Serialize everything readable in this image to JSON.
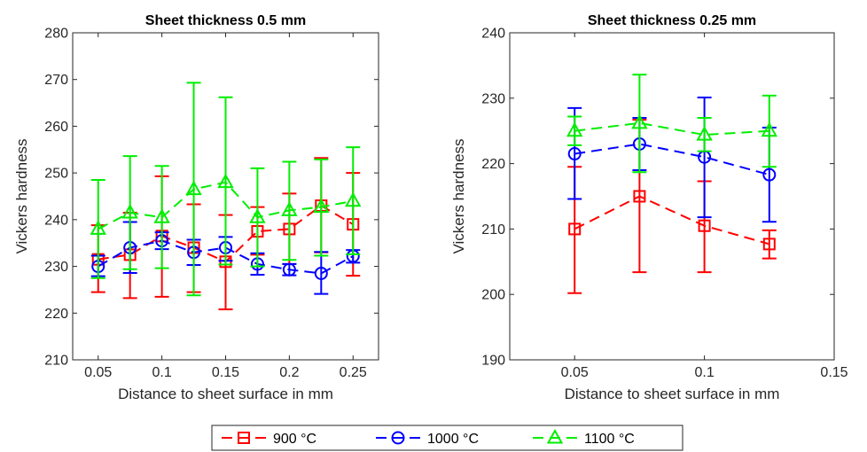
{
  "chart_data": [
    {
      "type": "line",
      "title": "Sheet thickness 0.5 mm",
      "xlabel": "Distance to sheet surface in mm",
      "ylabel": "Vickers hardness",
      "xlim": [
        0.03,
        0.27
      ],
      "ylim": [
        210,
        280
      ],
      "xticks": [
        "0.05",
        "0.1",
        "0.15",
        "0.2",
        "0.25"
      ],
      "xtick_values": [
        0.05,
        0.1,
        0.15,
        0.2,
        0.25
      ],
      "yticks": [
        "210",
        "220",
        "230",
        "240",
        "250",
        "260",
        "270",
        "280"
      ],
      "ytick_values": [
        210,
        220,
        230,
        240,
        250,
        260,
        270,
        280
      ],
      "grid": false,
      "x": [
        0.05,
        0.075,
        0.1,
        0.125,
        0.15,
        0.175,
        0.2,
        0.225,
        0.25
      ],
      "series": [
        {
          "name": "900 °C",
          "color": "#ff0000",
          "marker": "square",
          "values": [
            231.5,
            232.5,
            236.5,
            234.0,
            231.0,
            237.5,
            238.0,
            243.0,
            239.0
          ],
          "err_low": [
            224.5,
            223.2,
            223.5,
            224.5,
            220.8,
            232.5,
            230.5,
            233.0,
            228.0
          ],
          "err_high": [
            238.8,
            241.5,
            249.3,
            243.3,
            241.0,
            242.7,
            245.6,
            253.2,
            250.0
          ]
        },
        {
          "name": "1000 °C",
          "color": "#0000ff",
          "marker": "circle",
          "values": [
            230.0,
            234.0,
            235.5,
            233.0,
            234.0,
            230.5,
            229.3,
            228.5,
            232.2
          ],
          "err_low": [
            227.9,
            228.6,
            233.7,
            230.3,
            231.2,
            228.2,
            228.1,
            224.1,
            230.8
          ],
          "err_high": [
            232.3,
            239.5,
            237.3,
            235.7,
            236.3,
            232.8,
            230.5,
            233.1,
            233.5
          ]
        },
        {
          "name": "1100 °C",
          "color": "#00ee00",
          "marker": "triangle",
          "values": [
            238.0,
            241.5,
            240.5,
            246.5,
            248.0,
            240.5,
            242.0,
            242.7,
            244.0
          ],
          "err_low": [
            227.5,
            229.4,
            229.6,
            223.8,
            230.4,
            230.0,
            231.4,
            232.3,
            232.6
          ],
          "err_high": [
            248.5,
            253.6,
            251.5,
            269.3,
            266.2,
            251.0,
            252.4,
            252.9,
            255.5
          ]
        }
      ]
    },
    {
      "type": "line",
      "title": "Sheet thickness 0.25 mm",
      "xlabel": "Distance to sheet surface in mm",
      "ylabel": "Vickers hardness",
      "xlim": [
        0.025,
        0.15
      ],
      "ylim": [
        190,
        240
      ],
      "xticks": [
        "0.05",
        "0.1",
        "0.15"
      ],
      "xtick_values": [
        0.05,
        0.1,
        0.15
      ],
      "yticks": [
        "190",
        "200",
        "210",
        "220",
        "230",
        "240"
      ],
      "ytick_values": [
        190,
        200,
        210,
        220,
        230,
        240
      ],
      "grid": false,
      "x": [
        0.05,
        0.075,
        0.1,
        0.125
      ],
      "series": [
        {
          "name": "900 °C",
          "color": "#ff0000",
          "marker": "square",
          "values": [
            210.0,
            215.0,
            210.5,
            207.7
          ],
          "err_low": [
            200.2,
            203.4,
            203.4,
            205.5
          ],
          "err_high": [
            219.5,
            226.7,
            217.3,
            209.8
          ]
        },
        {
          "name": "1000 °C",
          "color": "#0000ff",
          "marker": "circle",
          "values": [
            221.5,
            223.0,
            221.0,
            218.3
          ],
          "err_low": [
            214.6,
            219.0,
            211.8,
            211.1
          ],
          "err_high": [
            228.5,
            227.0,
            230.1,
            225.5
          ]
        },
        {
          "name": "1100 °C",
          "color": "#00ee00",
          "marker": "triangle",
          "values": [
            225.0,
            226.2,
            224.4,
            225.0
          ],
          "err_low": [
            222.8,
            218.7,
            221.9,
            219.5
          ],
          "err_high": [
            227.2,
            233.6,
            227.0,
            230.4
          ]
        }
      ]
    }
  ],
  "legend": {
    "placement": "bottom-center",
    "entries": [
      "900 °C",
      "1000 °C",
      "1100 °C"
    ]
  }
}
